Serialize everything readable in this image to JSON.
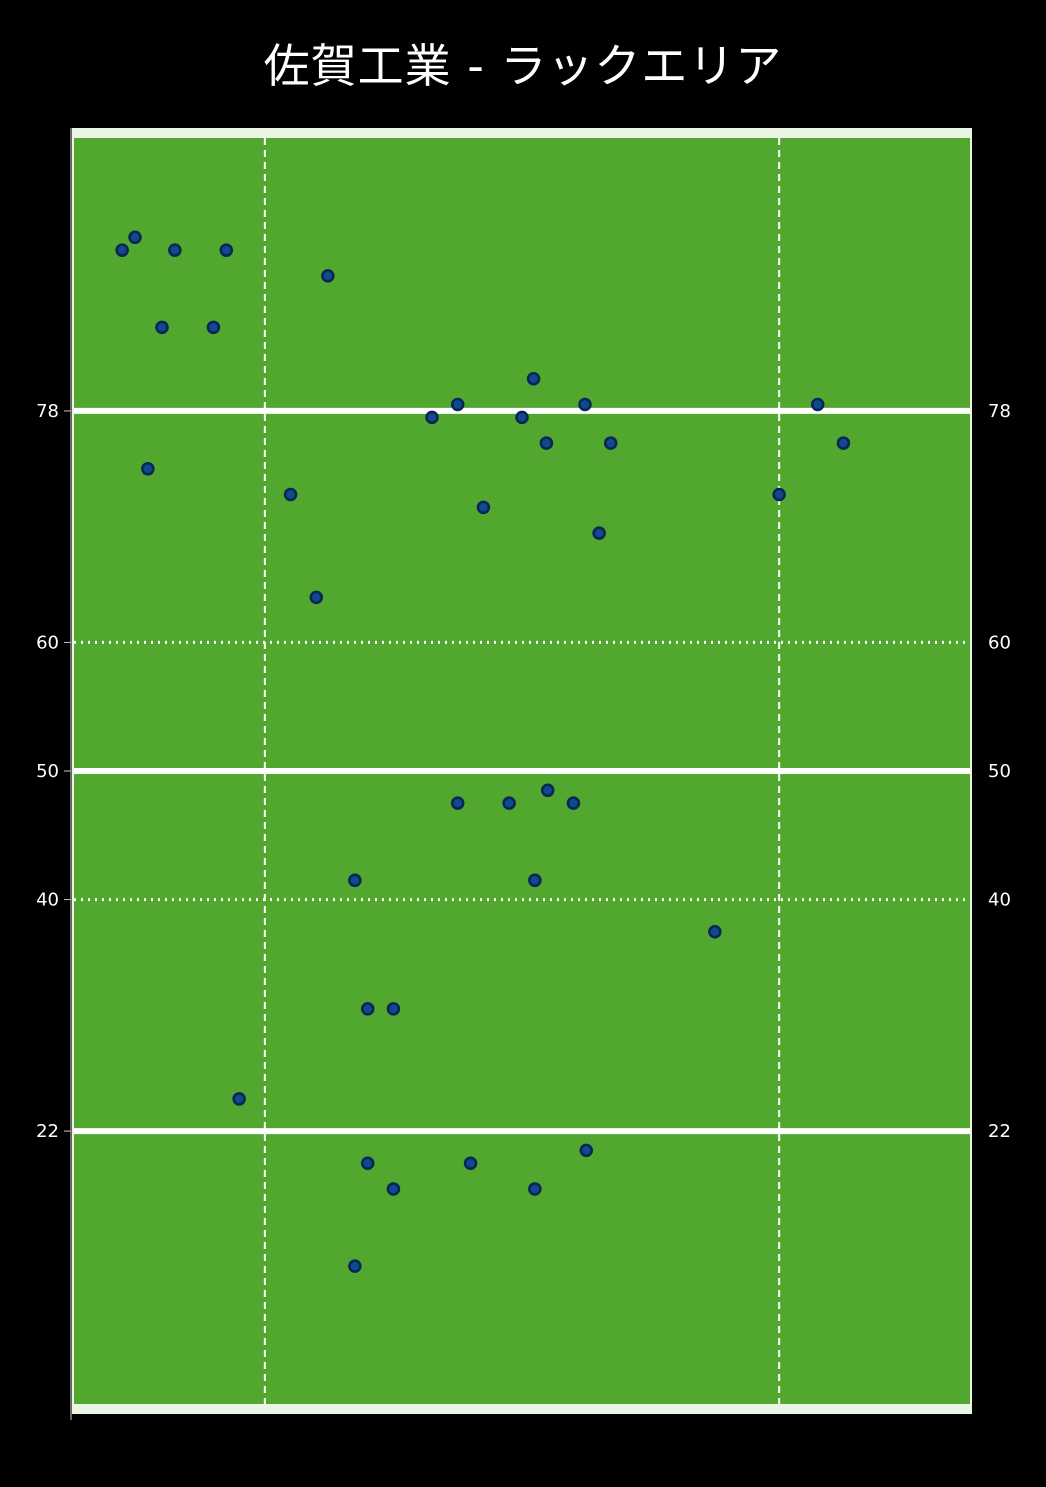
{
  "chart_data": {
    "type": "scatter",
    "title": "佐賀工業 - ラックエリア",
    "xlabel": "",
    "ylabel": "",
    "xlim": [
      0,
      70
    ],
    "ylim": [
      0,
      100
    ],
    "grid": true,
    "y_ticks_left": [
      78,
      60,
      50,
      40,
      22
    ],
    "y_ticks_right": [
      78,
      60,
      50,
      40,
      22
    ],
    "solid_lines_y": [
      22,
      50,
      78
    ],
    "dotted_lines_y": [
      40,
      60
    ],
    "dashed_lines_x": [
      15,
      55
    ],
    "colors": {
      "background": "#000000",
      "field": "#52a72f",
      "field_border": "#eaf5e4",
      "line": "#ffffff",
      "marker_fill": "#0e4a8c",
      "marker_edge": "#0a2456",
      "text": "#ffffff"
    },
    "points": [
      {
        "x": 3.9,
        "y": 90.5
      },
      {
        "x": 4.9,
        "y": 91.5
      },
      {
        "x": 8.0,
        "y": 90.5
      },
      {
        "x": 12.0,
        "y": 90.5
      },
      {
        "x": 19.9,
        "y": 88.5
      },
      {
        "x": 7.0,
        "y": 84.5
      },
      {
        "x": 11.0,
        "y": 84.5
      },
      {
        "x": 35.9,
        "y": 80.5
      },
      {
        "x": 28.0,
        "y": 77.5
      },
      {
        "x": 30.0,
        "y": 78.5
      },
      {
        "x": 35.0,
        "y": 77.5
      },
      {
        "x": 39.9,
        "y": 78.5
      },
      {
        "x": 36.9,
        "y": 75.5
      },
      {
        "x": 41.9,
        "y": 75.5
      },
      {
        "x": 58.0,
        "y": 78.5
      },
      {
        "x": 60.0,
        "y": 75.5
      },
      {
        "x": 5.9,
        "y": 73.5
      },
      {
        "x": 17.0,
        "y": 71.5
      },
      {
        "x": 32.0,
        "y": 70.5
      },
      {
        "x": 55.0,
        "y": 71.5
      },
      {
        "x": 41.0,
        "y": 68.5
      },
      {
        "x": 19.0,
        "y": 63.5
      },
      {
        "x": 30.0,
        "y": 47.5
      },
      {
        "x": 34.0,
        "y": 47.5
      },
      {
        "x": 37.0,
        "y": 48.5
      },
      {
        "x": 39.0,
        "y": 47.5
      },
      {
        "x": 22.0,
        "y": 41.5
      },
      {
        "x": 36.0,
        "y": 41.5
      },
      {
        "x": 50.0,
        "y": 37.5
      },
      {
        "x": 23.0,
        "y": 31.5
      },
      {
        "x": 25.0,
        "y": 31.5
      },
      {
        "x": 13.0,
        "y": 24.5
      },
      {
        "x": 40.0,
        "y": 20.5
      },
      {
        "x": 23.0,
        "y": 19.5
      },
      {
        "x": 31.0,
        "y": 19.5
      },
      {
        "x": 25.0,
        "y": 17.5
      },
      {
        "x": 36.0,
        "y": 17.5
      },
      {
        "x": 22.0,
        "y": 11.5
      }
    ]
  }
}
